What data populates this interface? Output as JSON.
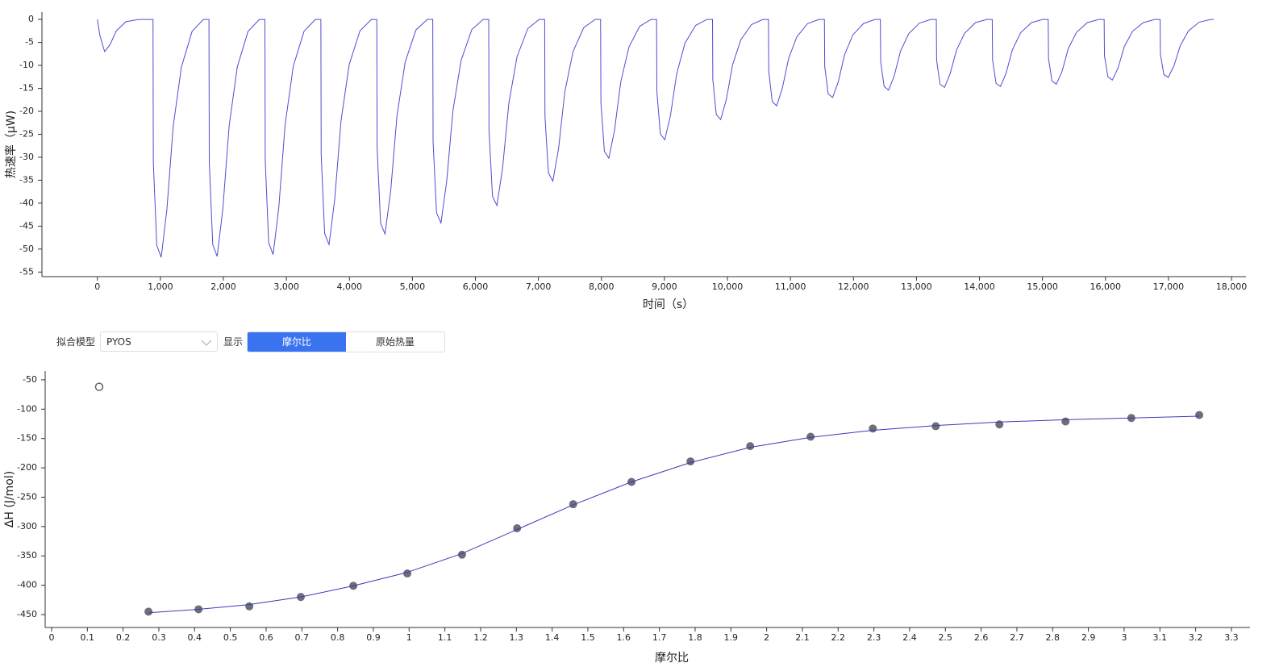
{
  "chart_data": [
    {
      "type": "line",
      "xlabel": "时间（s）",
      "ylabel": "热速率（μW)",
      "grid": false,
      "xlim": [
        -880,
        18230
      ],
      "ylim": [
        -56,
        1.6
      ],
      "xticks": [
        0,
        {
          "value": 1000,
          "label": "1,000"
        },
        {
          "value": 2000,
          "label": "2,000"
        },
        {
          "value": 3000,
          "label": "3,000"
        },
        {
          "value": 4000,
          "label": "4,000"
        },
        {
          "value": 5000,
          "label": "5,000"
        },
        {
          "value": 6000,
          "label": "6,000"
        },
        {
          "value": 7000,
          "label": "7,000"
        },
        {
          "value": 8000,
          "label": "8,000"
        },
        {
          "value": 9000,
          "label": "9,000"
        },
        {
          "value": 10000,
          "label": "10,000"
        },
        {
          "value": 11000,
          "label": "11,000"
        },
        {
          "value": 12000,
          "label": "12,000"
        },
        {
          "value": 13000,
          "label": "13,000"
        },
        {
          "value": 14000,
          "label": "14,000"
        },
        {
          "value": 15000,
          "label": "15,000"
        },
        {
          "value": 16000,
          "label": "16,000"
        },
        {
          "value": 17000,
          "label": "17,000"
        },
        {
          "value": 18000,
          "label": "18,000"
        }
      ],
      "yticks": [
        0,
        -5,
        -10,
        -15,
        -20,
        -25,
        -30,
        -35,
        -40,
        -45,
        -50,
        -55
      ],
      "x": [
        0,
        40,
        115,
        200,
        300,
        450,
        650,
        883,
        888,
        943,
        1013,
        1103,
        1203,
        1333,
        1503,
        1683,
        1771,
        1776,
        1831,
        1901,
        1991,
        2091,
        2221,
        2391,
        2571,
        2659,
        2664,
        2719,
        2789,
        2879,
        2979,
        3109,
        3279,
        3459,
        3547,
        3552,
        3607,
        3677,
        3767,
        3867,
        3997,
        4167,
        4347,
        4435,
        4440,
        4495,
        4565,
        4655,
        4755,
        4885,
        5055,
        5235,
        5323,
        5328,
        5383,
        5453,
        5543,
        5643,
        5773,
        5943,
        6123,
        6211,
        6216,
        6271,
        6341,
        6431,
        6531,
        6661,
        6831,
        7011,
        7099,
        7104,
        7159,
        7229,
        7319,
        7419,
        7549,
        7719,
        7899,
        7987,
        7992,
        8047,
        8117,
        8207,
        8307,
        8437,
        8607,
        8787,
        8875,
        8880,
        8935,
        9005,
        9095,
        9195,
        9325,
        9495,
        9675,
        9763,
        9768,
        9823,
        9893,
        9983,
        10083,
        10213,
        10383,
        10563,
        10651,
        10656,
        10711,
        10781,
        10871,
        10971,
        11101,
        11271,
        11451,
        11539,
        11544,
        11599,
        11669,
        11759,
        11859,
        11989,
        12159,
        12339,
        12427,
        12432,
        12487,
        12557,
        12647,
        12747,
        12877,
        13047,
        13227,
        13315,
        13320,
        13375,
        13445,
        13535,
        13635,
        13765,
        13935,
        14115,
        14203,
        14208,
        14263,
        14333,
        14423,
        14523,
        14653,
        14823,
        15003,
        15091,
        15096,
        15151,
        15221,
        15311,
        15411,
        15541,
        15711,
        15891,
        15979,
        15984,
        16039,
        16109,
        16199,
        16299,
        16429,
        16599,
        16779,
        16867,
        16872,
        16927,
        16997,
        17087,
        17187,
        17317,
        17487,
        17667,
        17720
      ],
      "series": [
        {
          "color": "#4d4dd6",
          "values": [
            0,
            -3.5,
            -7,
            -5.5,
            -2.5,
            -0.5,
            0,
            0,
            -31.1,
            -49.2,
            -51.8,
            -41.4,
            -23.3,
            -10.4,
            -2.6,
            0,
            0,
            -31.0,
            -49.0,
            -51.6,
            -41.3,
            -23.2,
            -10.3,
            -2.6,
            0,
            0,
            -30.7,
            -48.6,
            -51.2,
            -41.0,
            -23.0,
            -10.2,
            -2.6,
            0,
            0,
            -29.4,
            -46.6,
            -49.0,
            -39.2,
            -22.1,
            -9.8,
            -2.5,
            0,
            0,
            -28.0,
            -44.4,
            -46.7,
            -37.4,
            -21.0,
            -9.3,
            -2.3,
            0,
            0,
            -26.6,
            -42.1,
            -44.3,
            -35.4,
            -19.9,
            -8.9,
            -2.2,
            0,
            0,
            -24.3,
            -38.5,
            -40.5,
            -32.4,
            -18.2,
            -8.1,
            -2.0,
            0,
            0,
            -21.1,
            -33.4,
            -35.2,
            -28.2,
            -15.8,
            -7.0,
            -1.8,
            0,
            0,
            -18.1,
            -28.7,
            -30.2,
            -24.2,
            -13.6,
            -6.0,
            -1.5,
            0,
            0,
            -15.7,
            -24.9,
            -26.2,
            -21.0,
            -11.8,
            -5.2,
            -1.3,
            0,
            0,
            -13.1,
            -20.7,
            -21.8,
            -17.4,
            -9.8,
            -4.4,
            -1.1,
            0,
            0,
            -11.3,
            -17.9,
            -18.8,
            -15.0,
            -8.5,
            -3.8,
            -0.9,
            0,
            0,
            -10.2,
            -16.2,
            -17.0,
            -13.6,
            -7.7,
            -3.4,
            -0.9,
            0,
            0,
            -9.2,
            -14.6,
            -15.4,
            -12.3,
            -6.9,
            -3.1,
            -0.8,
            0,
            0,
            -8.9,
            -14.1,
            -14.8,
            -11.8,
            -6.7,
            -3.0,
            -0.7,
            0,
            0,
            -8.8,
            -13.9,
            -14.6,
            -11.7,
            -6.6,
            -2.9,
            -0.7,
            0,
            0,
            -8.5,
            -13.4,
            -14.1,
            -11.3,
            -6.3,
            -2.8,
            -0.7,
            0,
            0,
            -7.9,
            -12.5,
            -13.2,
            -10.6,
            -5.9,
            -2.6,
            -0.7,
            0,
            0,
            -7.6,
            -12.0,
            -12.6,
            -10.1,
            -5.7,
            -2.5,
            -0.6,
            0,
            0
          ]
        }
      ]
    },
    {
      "type": "scatter",
      "xlabel": "摩尔比",
      "ylabel": "ΔH (J/mol)",
      "grid": false,
      "xlim": [
        -0.018,
        3.352
      ],
      "ylim": [
        -472,
        -35
      ],
      "xticks": [
        0,
        0.1,
        0.2,
        0.3,
        0.4,
        0.5,
        0.6,
        0.7,
        0.8,
        0.9,
        1,
        1.1,
        1.2,
        1.3,
        1.4,
        1.5,
        1.6,
        1.7,
        1.8,
        1.9,
        2,
        2.1,
        2.2,
        2.3,
        2.4,
        2.5,
        2.6,
        2.7,
        2.8,
        2.9,
        3,
        3.1,
        3.2,
        3.3
      ],
      "yticks": [
        -50,
        -100,
        -150,
        -200,
        -250,
        -300,
        -350,
        -400,
        -450
      ],
      "series": [
        {
          "style": "open",
          "color": "#666666",
          "x": [
            0.133
          ],
          "values": [
            -62
          ]
        },
        {
          "style": "filled",
          "color": "#6e6e78",
          "x": [
            0.271,
            0.411,
            0.553,
            0.697,
            0.844,
            0.995,
            1.148,
            1.302,
            1.459,
            1.622,
            1.787,
            1.954,
            2.123,
            2.297,
            2.473,
            2.651,
            2.836,
            3.02,
            3.21
          ],
          "values": [
            -445,
            -441,
            -436,
            -420,
            -401,
            -380,
            -348,
            -303,
            -262,
            -224,
            -189,
            -163,
            -147,
            -133,
            -129,
            -126,
            -121,
            -115,
            -110
          ]
        },
        {
          "style": "line",
          "color": "#3a3ab8",
          "x": [
            0.271,
            0.411,
            0.553,
            0.697,
            0.844,
            0.995,
            1.148,
            1.302,
            1.459,
            1.622,
            1.787,
            1.954,
            2.123,
            2.297,
            2.473,
            2.651,
            2.836,
            3.02,
            3.21
          ],
          "values": [
            -447,
            -441,
            -433,
            -420,
            -401,
            -378,
            -346,
            -305,
            -263,
            -224,
            -191,
            -165,
            -148,
            -136,
            -128,
            -122,
            -118,
            -115,
            -112
          ]
        }
      ]
    }
  ],
  "controls": {
    "fit_model_label": "拟合模型",
    "fit_model_value": "PYOS",
    "display_label": "显示",
    "display_options": [
      "摩尔比",
      "原始热量"
    ],
    "active_option": 0
  }
}
